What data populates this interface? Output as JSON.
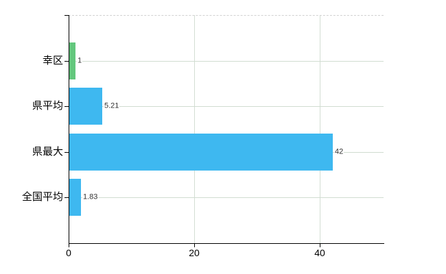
{
  "chart_data": {
    "type": "bar",
    "orientation": "horizontal",
    "title": "",
    "xlabel": "",
    "ylabel": "",
    "categories": [
      "幸区",
      "県平均",
      "県最大",
      "全国平均"
    ],
    "values": [
      1,
      5.21,
      42,
      1.83
    ],
    "value_labels": [
      "1",
      "5.21",
      "42",
      "1.83"
    ],
    "bar_colors": [
      "#63c77d",
      "#3eb8f0",
      "#3eb8f0",
      "#3eb8f0"
    ],
    "xlim": [
      0,
      50.2
    ],
    "x_ticks": [
      0,
      20,
      40
    ],
    "x_tick_labels": [
      "0",
      "20",
      "40"
    ],
    "grid": true,
    "legend": false,
    "styles": {
      "background": "#ffffff",
      "axis_color": "#000000",
      "hgrid_color": "#d0dcd0",
      "vgrid_color": "#d3ddd3",
      "top_border_color": "#d2d2d2",
      "category_label_color": "#000000",
      "tick_label_color": "#000000",
      "value_label_color": "#333333"
    }
  }
}
